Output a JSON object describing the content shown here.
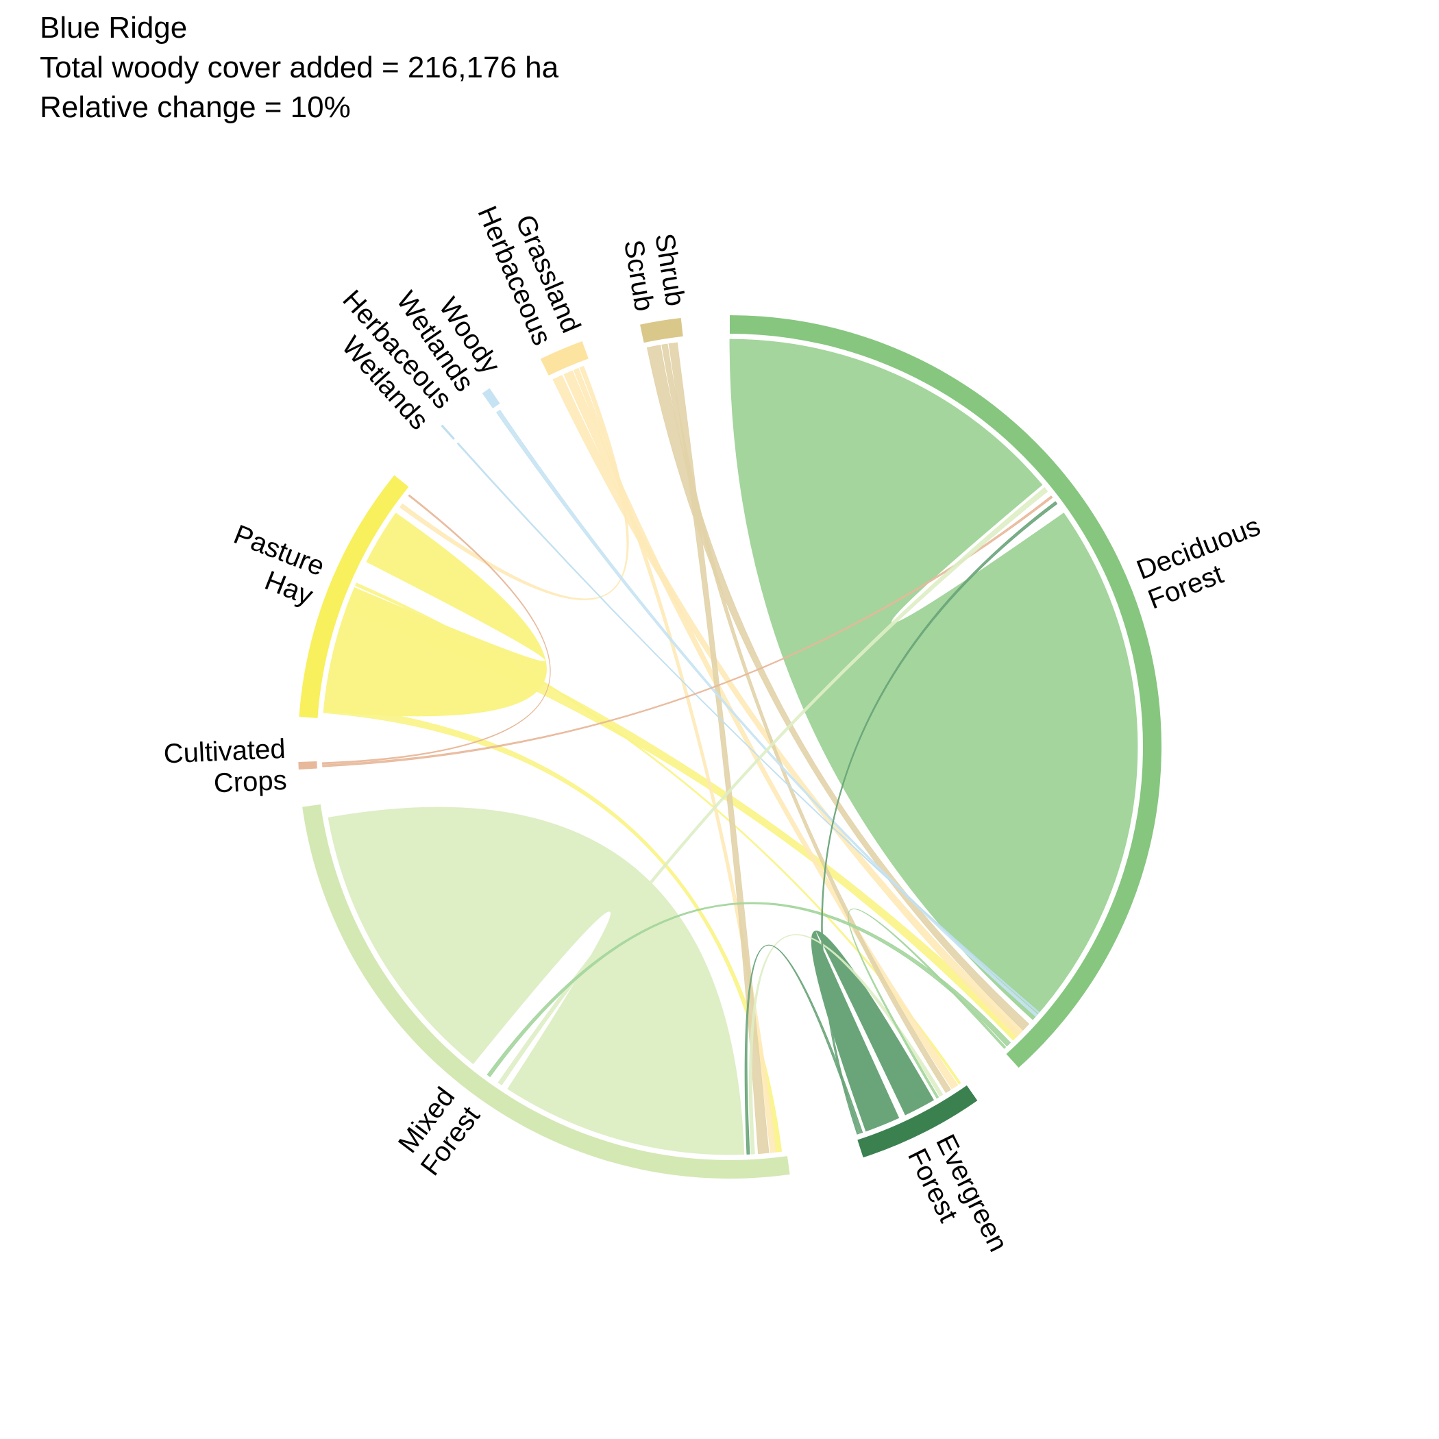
{
  "chart_data": {
    "type": "chord",
    "title": "Blue Ridge",
    "subtitle_lines": [
      "Total woody cover added = 216,176 ha",
      "Relative change = 10%"
    ],
    "sectors": [
      {
        "id": "deciduous",
        "label": [
          "Deciduous",
          "Forest"
        ],
        "start": 0,
        "end": 138,
        "color": "#86c67f",
        "ribbon_color": "#a3d59c"
      },
      {
        "id": "evergreen",
        "label": [
          "Evergreen",
          "Forest"
        ],
        "start": 145,
        "end": 162,
        "color": "#3b8150",
        "ribbon_color": "#6aa57a"
      },
      {
        "id": "mixed",
        "label": [
          "Mixed",
          "Forest"
        ],
        "start": 172,
        "end": 262,
        "color": "#d4e8b3",
        "ribbon_color": "#deeec5"
      },
      {
        "id": "crops",
        "label": [
          "Cultivated",
          "Crops"
        ],
        "start": 267,
        "end": 268,
        "color": "#e8b89a",
        "ribbon_color": "#e8b89a"
      },
      {
        "id": "pasture",
        "label": [
          "Pasture",
          "Hay"
        ],
        "start": 274,
        "end": 309,
        "color": "#f8f05c",
        "ribbon_color": "#f9f485"
      },
      {
        "id": "herb_wet",
        "label": [
          "Herbaceous",
          "Wetlands"
        ],
        "start": 318,
        "end": 318.3,
        "color": "#bfdff0",
        "ribbon_color": "#bfdff0"
      },
      {
        "id": "woody_wet",
        "label": [
          "Woody",
          "Wetlands"
        ],
        "start": 325,
        "end": 326.2,
        "color": "#c6e3f3",
        "ribbon_color": "#c6e3f3"
      },
      {
        "id": "grass",
        "label": [
          "Grassland",
          "Herbaceous"
        ],
        "start": 334,
        "end": 340,
        "color": "#fde3a0",
        "ribbon_color": "#feeab8"
      },
      {
        "id": "shrub",
        "label": [
          "Shrub",
          "Scrub"
        ],
        "start": 348,
        "end": 353.5,
        "color": "#d9c88a",
        "ribbon_color": "#e2d3a9"
      }
    ],
    "links": [
      {
        "source": "deciduous",
        "target": "deciduous",
        "s": [
          0,
          50
        ],
        "t": [
          55,
          132
        ]
      },
      {
        "source": "mixed",
        "target": "mixed",
        "s": [
          178,
          213
        ],
        "t": [
          219,
          260
        ]
      },
      {
        "source": "evergreen",
        "target": "evergreen",
        "s": [
          150,
          154.5
        ],
        "t": [
          155.5,
          160.5
        ]
      },
      {
        "source": "pasture",
        "target": "pasture",
        "s": [
          275,
          293
        ],
        "t": [
          297,
          305
        ]
      },
      {
        "source": "pasture",
        "target": "deciduous",
        "s": [
          289.5,
          292
        ],
        "t": [
          134.5,
          136
        ]
      },
      {
        "source": "pasture",
        "target": "mixed",
        "s": [
          274.8,
          276
        ],
        "t": [
          172.7,
          173.5
        ]
      },
      {
        "source": "pasture",
        "target": "evergreen",
        "s": [
          293.3,
          293.7
        ],
        "t": [
          145.5,
          145.8
        ]
      },
      {
        "source": "grass",
        "target": "deciduous",
        "s": [
          334.3,
          335.7
        ],
        "t": [
          134,
          135.3
        ]
      },
      {
        "source": "grass",
        "target": "evergreen",
        "s": [
          336,
          337.3
        ],
        "t": [
          146,
          147
        ]
      },
      {
        "source": "grass",
        "target": "mixed",
        "s": [
          337.5,
          338.2
        ],
        "t": [
          173.5,
          174.3
        ]
      },
      {
        "source": "grass",
        "target": "pasture",
        "s": [
          338.4,
          339
        ],
        "t": [
          306,
          306.6
        ]
      },
      {
        "source": "shrub",
        "target": "deciduous",
        "s": [
          348.3,
          350.2
        ],
        "t": [
          132.8,
          134
        ]
      },
      {
        "source": "shrub",
        "target": "evergreen",
        "s": [
          350.4,
          351.2
        ],
        "t": [
          147.2,
          148
        ]
      },
      {
        "source": "shrub",
        "target": "mixed",
        "s": [
          351.4,
          352.6
        ],
        "t": [
          174.5,
          176
        ]
      },
      {
        "source": "woody_wet",
        "target": "deciduous",
        "s": [
          325.1,
          325.7
        ],
        "t": [
          131,
          131.4
        ]
      },
      {
        "source": "herb_wet",
        "target": "deciduous",
        "s": [
          318.05,
          318.25
        ],
        "t": [
          130.6,
          130.8
        ]
      },
      {
        "source": "crops",
        "target": "deciduous",
        "s": [
          267.2,
          267.5
        ],
        "t": [
          52,
          52.3
        ]
      },
      {
        "source": "crops",
        "target": "pasture",
        "s": [
          267.6,
          267.8
        ],
        "t": [
          308,
          308.2
        ]
      },
      {
        "source": "mixed",
        "target": "deciduous",
        "s": [
          214,
          214.6
        ],
        "t": [
          50.5,
          51.2
        ]
      },
      {
        "source": "mixed",
        "target": "evergreen",
        "s": [
          176.5,
          177
        ],
        "t": [
          148.5,
          149
        ]
      },
      {
        "source": "deciduous",
        "target": "mixed",
        "s": [
          136.5,
          137.2
        ],
        "t": [
          216,
          216.5
        ]
      },
      {
        "source": "deciduous",
        "target": "evergreen",
        "s": [
          137.4,
          137.7
        ],
        "t": [
          149.2,
          149.5
        ]
      },
      {
        "source": "evergreen",
        "target": "mixed",
        "s": [
          161,
          161.4
        ],
        "t": [
          177.2,
          177.6
        ]
      },
      {
        "source": "evergreen",
        "target": "deciduous",
        "s": [
          161.5,
          161.8
        ],
        "t": [
          53,
          53.4
        ]
      }
    ]
  }
}
